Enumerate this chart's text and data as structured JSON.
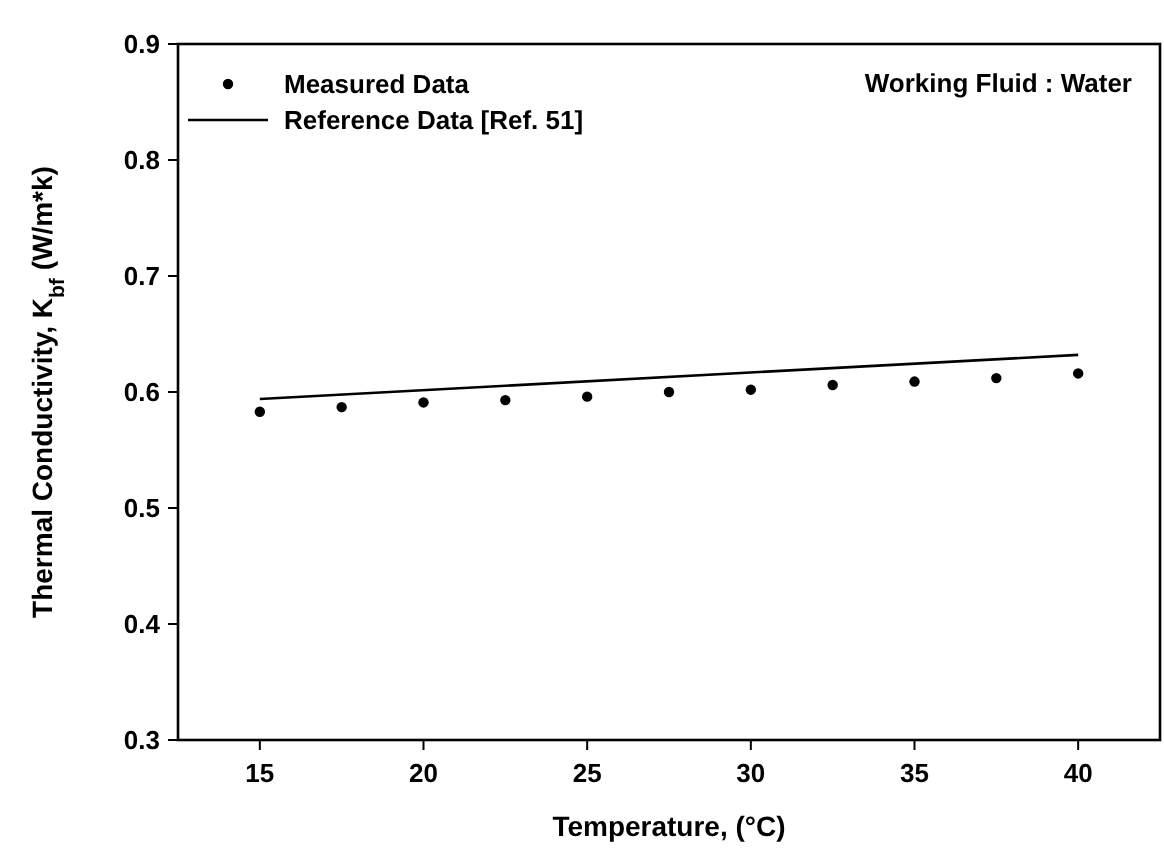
{
  "chart_data": {
    "type": "scatter",
    "xlabel": "Temperature, (°C)",
    "ylabel": "Thermal Conductivity, K$_{bf}$ (W/m*k)",
    "xlim": [
      12.5,
      42.5
    ],
    "xticks": [
      15,
      20,
      25,
      30,
      35,
      40
    ],
    "ylim": [
      0.3,
      0.9
    ],
    "yticks": [
      0.3,
      0.4,
      0.5,
      0.6,
      0.7,
      0.8,
      0.9
    ],
    "grid": false,
    "legend": "top left",
    "annotations": [
      "Working Fluid : Water"
    ],
    "series": [
      {
        "name": "Measured Data",
        "marker": "circle",
        "color": "#000000",
        "x": [
          15,
          17.5,
          20,
          22.5,
          25,
          27.5,
          30,
          32.5,
          35,
          37.5,
          40
        ],
        "values": [
          0.583,
          0.587,
          0.591,
          0.593,
          0.596,
          0.6,
          0.602,
          0.606,
          0.609,
          0.612,
          0.616
        ]
      },
      {
        "name": "Reference Data [Ref. 51]",
        "type": "line",
        "line_style": "solid",
        "color": "#000000",
        "x": [
          15,
          40
        ],
        "values": [
          0.594,
          0.632
        ]
      }
    ]
  }
}
